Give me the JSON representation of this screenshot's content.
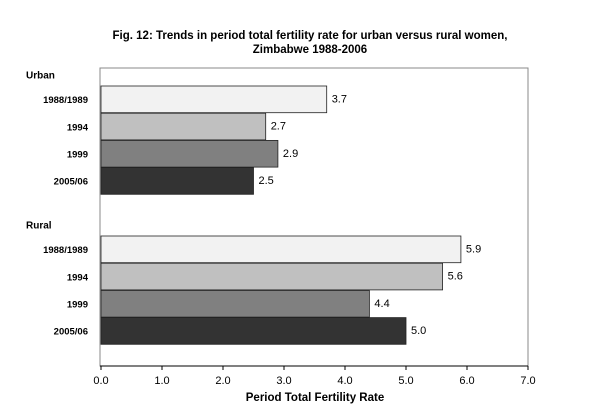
{
  "chart_data": {
    "type": "bar",
    "orientation": "horizontal",
    "title": "Fig. 12:  Trends in period total fertility rate for urban versus rural women,",
    "subtitle": "Zimbabwe 1988-2006",
    "x_label": "Period Total Fertility Rate",
    "xlim": [
      0,
      7
    ],
    "xticks": [
      {
        "value": 0,
        "label": "0.0"
      },
      {
        "value": 1,
        "label": "1.0"
      },
      {
        "value": 2,
        "label": "2.0"
      },
      {
        "value": 3,
        "label": "3.0"
      },
      {
        "value": 4,
        "label": "4.0"
      },
      {
        "value": 5,
        "label": "5.0"
      },
      {
        "value": 6,
        "label": "6.0"
      },
      {
        "value": 7,
        "label": "7.0"
      }
    ],
    "colors": [
      "#f2f2f2",
      "#c0c0c0",
      "#808080",
      "#333333"
    ],
    "groups": [
      {
        "name": "Urban",
        "categories": [
          "1988/1989",
          "1994",
          "1999",
          "2005/06"
        ],
        "values": [
          3.7,
          2.7,
          2.9,
          2.5
        ],
        "value_labels": [
          "3.7",
          "2.7",
          "2.9",
          "2.5"
        ]
      },
      {
        "name": "Rural",
        "categories": [
          "1988/1989",
          "1994",
          "1999",
          "2005/06"
        ],
        "values": [
          5.9,
          5.6,
          4.4,
          5.0
        ],
        "value_labels": [
          "5.9",
          "5.6",
          "4.4",
          "5.0"
        ]
      }
    ]
  }
}
